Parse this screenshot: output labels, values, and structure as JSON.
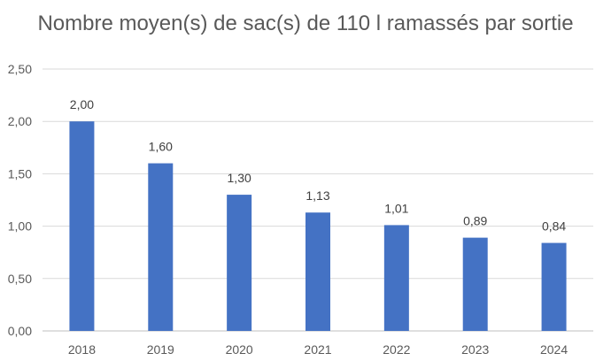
{
  "chart_data": {
    "type": "bar",
    "title": "Nombre moyen(s) de sac(s) de 110 l ramassés par sortie",
    "xlabel": "",
    "ylabel": "",
    "categories": [
      "2018",
      "2019",
      "2020",
      "2021",
      "2022",
      "2023",
      "2024"
    ],
    "values": [
      2.0,
      1.6,
      1.3,
      1.13,
      1.01,
      0.89,
      0.84
    ],
    "data_labels": [
      "2,00",
      "1,60",
      "1,30",
      "1,13",
      "1,01",
      "0,89",
      "0,84"
    ],
    "ylim": [
      0,
      2.5
    ],
    "y_ticks": [
      0,
      0.5,
      1.0,
      1.5,
      2.0,
      2.5
    ],
    "y_tick_labels": [
      "0,00",
      "0,50",
      "1,00",
      "1,50",
      "2,00",
      "2,50"
    ],
    "grid": true,
    "legend": "none",
    "bar_color": "#4472c4"
  }
}
